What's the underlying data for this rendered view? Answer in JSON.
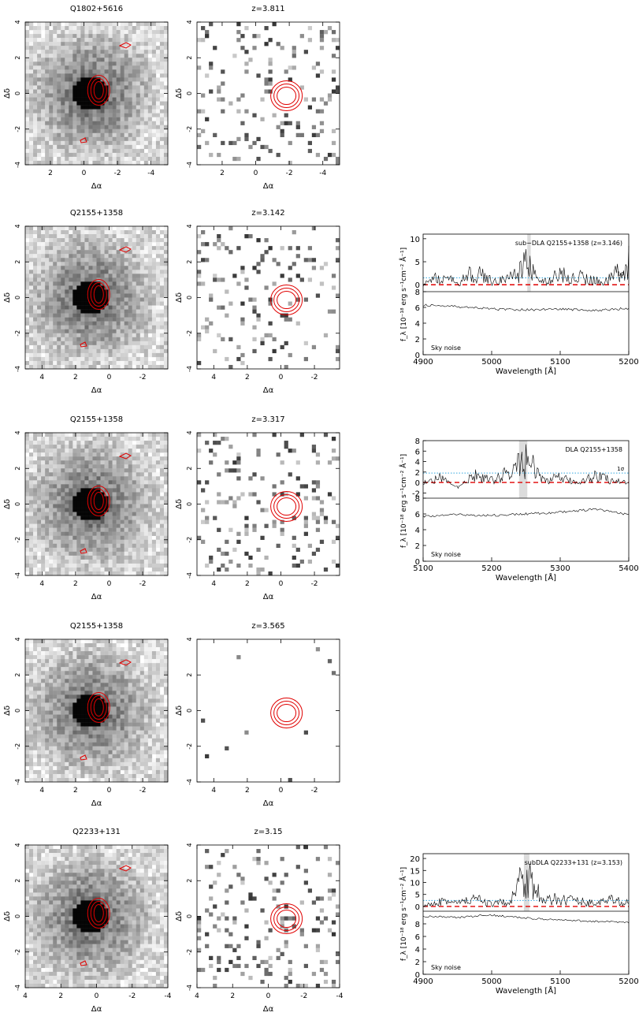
{
  "rows": [
    {
      "qso": "Q1802+5616",
      "z": "z=3.811",
      "qsoX": {
        "ticks": [
          2,
          0,
          -2,
          -4
        ],
        "range": [
          3.5,
          -5
        ]
      },
      "zX": {
        "ticks": [
          2,
          0,
          -2,
          -4
        ],
        "range": [
          3.5,
          -5
        ]
      }
    },
    {
      "qso": "Q2155+1358",
      "z": "z=3.142",
      "qsoX": {
        "ticks": [
          4,
          2,
          0,
          -2
        ],
        "range": [
          5,
          -3.5
        ]
      },
      "zX": {
        "ticks": [
          4,
          2,
          0,
          -2
        ],
        "range": [
          5,
          -3.5
        ]
      }
    },
    {
      "qso": "Q2155+1358",
      "z": "z=3.317",
      "qsoX": {
        "ticks": [
          4,
          2,
          0,
          -2
        ],
        "range": [
          5,
          -3.5
        ]
      },
      "zX": {
        "ticks": [
          4,
          2,
          0,
          -2
        ],
        "range": [
          5,
          -3.5
        ]
      }
    },
    {
      "qso": "Q2155+1358",
      "z": "z=3.565",
      "qsoX": {
        "ticks": [
          4,
          2,
          0,
          -2
        ],
        "range": [
          5,
          -3.5
        ]
      },
      "zX": {
        "ticks": [
          4,
          2,
          0,
          -2
        ],
        "range": [
          5,
          -3.5
        ]
      }
    },
    {
      "qso": "Q2233+131",
      "z": "z=3.15",
      "qsoX": {
        "ticks": [
          4,
          2,
          0,
          -2,
          -4
        ],
        "range": [
          4,
          -4
        ]
      },
      "zX": {
        "ticks": [
          4,
          2,
          0,
          -2,
          -4
        ],
        "range": [
          4,
          -4
        ]
      }
    }
  ],
  "image_axes": {
    "xlabel": "Δα",
    "ylabel": "Δδ",
    "yticks": [
      4,
      2,
      0,
      -2,
      -4
    ],
    "yrange": [
      -4,
      4
    ]
  },
  "colors": {
    "contour": "#e00000",
    "zero_line": "#e00000",
    "sigma_line": "#33a8e0",
    "highlight": "#dcdcdc",
    "trace": "#000000"
  },
  "chart_data": [
    {
      "type": "line",
      "label": "sub−DLA Q2155+1358 (z=3.146)",
      "sigma_label": "1σ",
      "sky_label": "Sky noise",
      "xlabel": "Wavelength [Å]",
      "ylabel": "f_λ [10⁻¹⁸ erg s⁻¹cm⁻² Å⁻¹]",
      "xlim": [
        4900,
        5200
      ],
      "xticks": [
        4900,
        5000,
        5100,
        5200
      ],
      "upper": {
        "ylim": [
          -1.5,
          11
        ],
        "yticks": [
          0,
          5,
          10
        ],
        "sigma": 1.5,
        "zero": 0,
        "highlight": [
          5052,
          5057
        ],
        "x": [
          4900,
          4925,
          4950,
          4975,
          5000,
          5025,
          5050,
          5075,
          5100,
          5125,
          5150,
          5175,
          5200
        ],
        "y": [
          0.5,
          2.5,
          1.0,
          3.5,
          1.5,
          2.0,
          5.5,
          1.0,
          3.0,
          2.5,
          1.5,
          2.0,
          6.5
        ]
      },
      "lower": {
        "ylim": [
          0,
          8
        ],
        "yticks": [
          0,
          2,
          4,
          6,
          8
        ],
        "x": [
          4900,
          4950,
          5000,
          5050,
          5100,
          5150,
          5200
        ],
        "y": [
          6.3,
          6.1,
          5.8,
          5.7,
          5.8,
          5.6,
          5.9
        ]
      }
    },
    {
      "type": "line",
      "label": "DLA Q2155+1358",
      "sigma_label": "1σ",
      "sky_label": "Sky noise",
      "xlabel": "Wavelength [Å]",
      "ylabel": "f_λ [10⁻¹⁸ erg s⁻¹cm⁻² Å⁻¹]",
      "xlim": [
        5100,
        5400
      ],
      "xticks": [
        5100,
        5200,
        5300,
        5400
      ],
      "upper": {
        "ylim": [
          -3,
          8
        ],
        "yticks": [
          -2,
          0,
          2,
          4,
          6,
          8
        ],
        "sigma": 1.8,
        "zero": 0,
        "highlight": [
          5240,
          5252
        ],
        "x": [
          5100,
          5125,
          5150,
          5175,
          5200,
          5225,
          5250,
          5275,
          5300,
          5325,
          5350,
          5375,
          5400
        ],
        "y": [
          0.5,
          1.5,
          -0.5,
          2.0,
          1.0,
          2.5,
          5.5,
          1.0,
          1.5,
          0.5,
          2.0,
          1.0,
          0.5
        ]
      },
      "lower": {
        "ylim": [
          0,
          8
        ],
        "yticks": [
          0,
          2,
          4,
          6,
          8
        ],
        "x": [
          5100,
          5150,
          5200,
          5250,
          5300,
          5350,
          5400
        ],
        "y": [
          5.7,
          5.9,
          5.8,
          6.0,
          6.2,
          6.6,
          5.9
        ]
      }
    },
    {
      "type": "line",
      "label": "subDLA Q2233+131 (z=3.153)",
      "sigma_label": "",
      "sky_label": "Sky noise",
      "xlabel": "Wavelength [Å]",
      "ylabel": "f_λ [10⁻¹⁸ erg s⁻¹cm⁻² Å⁻¹]",
      "xlim": [
        4900,
        5200
      ],
      "xticks": [
        4900,
        5000,
        5100,
        5200
      ],
      "upper": {
        "ylim": [
          -2,
          22
        ],
        "yticks": [
          0,
          5,
          10,
          15,
          20
        ],
        "sigma": 2.5,
        "zero": 0,
        "highlight": [
          5047,
          5055
        ],
        "x": [
          4900,
          4925,
          4950,
          4975,
          5000,
          5025,
          5050,
          5075,
          5100,
          5125,
          5150,
          5175,
          5200
        ],
        "y": [
          1.0,
          3.5,
          2.0,
          4.0,
          1.5,
          3.0,
          17.0,
          2.5,
          4.5,
          3.0,
          2.0,
          3.5,
          2.0
        ]
      },
      "lower": {
        "ylim": [
          0,
          10
        ],
        "yticks": [
          0,
          2,
          4,
          6,
          8
        ],
        "x": [
          4900,
          4950,
          5000,
          5050,
          5100,
          5150,
          5200
        ],
        "y": [
          9.2,
          9.0,
          9.4,
          8.9,
          8.6,
          8.4,
          8.2
        ]
      }
    }
  ]
}
